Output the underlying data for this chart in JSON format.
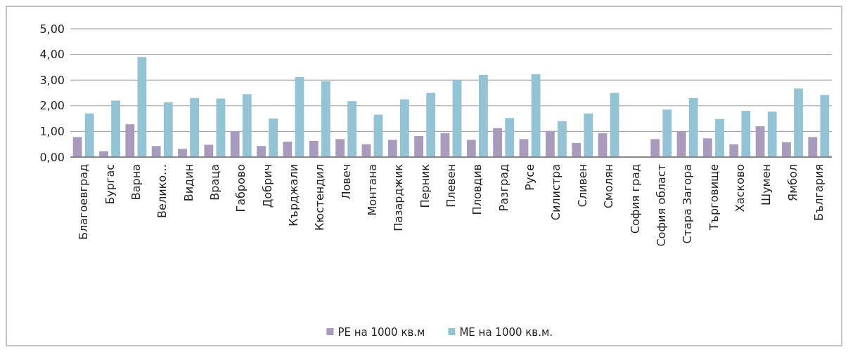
{
  "chart_data": {
    "type": "bar",
    "categories": [
      "Благоевград",
      "Бургас",
      "Варна",
      "Велико…",
      "Видин",
      "Враца",
      "Габрово",
      "Добрич",
      "Кърджали",
      "Кюстендил",
      "Ловеч",
      "Монтана",
      "Пазарджик",
      "Перник",
      "Плевен",
      "Пловдив",
      "Разград",
      "Русе",
      "Силистра",
      "Сливен",
      "Смолян",
      "София град",
      "София област",
      "Стара Загора",
      "Търговище",
      "Хасково",
      "Шумен",
      "Ямбол",
      "България"
    ],
    "series": [
      {
        "name": "РЕ на 1000 кв.м",
        "color": "#a99bbd",
        "values": [
          0.78,
          0.23,
          1.28,
          0.43,
          0.32,
          0.48,
          1.0,
          0.43,
          0.6,
          0.63,
          0.7,
          0.5,
          0.67,
          0.82,
          0.93,
          0.67,
          1.13,
          0.7,
          1.02,
          0.55,
          0.93,
          null,
          0.7,
          1.0,
          0.73,
          0.5,
          1.2,
          0.58,
          0.78
        ]
      },
      {
        "name": "МЕ на 1000 кв.м.",
        "color": "#93c4d6",
        "values": [
          1.7,
          2.2,
          3.9,
          2.13,
          2.3,
          2.28,
          2.45,
          1.5,
          3.12,
          2.95,
          2.18,
          1.65,
          2.25,
          2.5,
          3.0,
          3.2,
          1.52,
          3.23,
          1.4,
          1.7,
          2.5,
          null,
          1.85,
          2.3,
          1.48,
          1.8,
          1.77,
          2.67,
          2.42
        ]
      }
    ],
    "ylim": [
      0,
      5
    ],
    "yticks": [
      {
        "value": 0,
        "label": "0,00"
      },
      {
        "value": 1,
        "label": "1,00"
      },
      {
        "value": 2,
        "label": "2,00"
      },
      {
        "value": 3,
        "label": "3,00"
      },
      {
        "value": 4,
        "label": "4,00"
      },
      {
        "value": 5,
        "label": "5,00"
      }
    ],
    "grid": "y",
    "legend": "bottom"
  }
}
